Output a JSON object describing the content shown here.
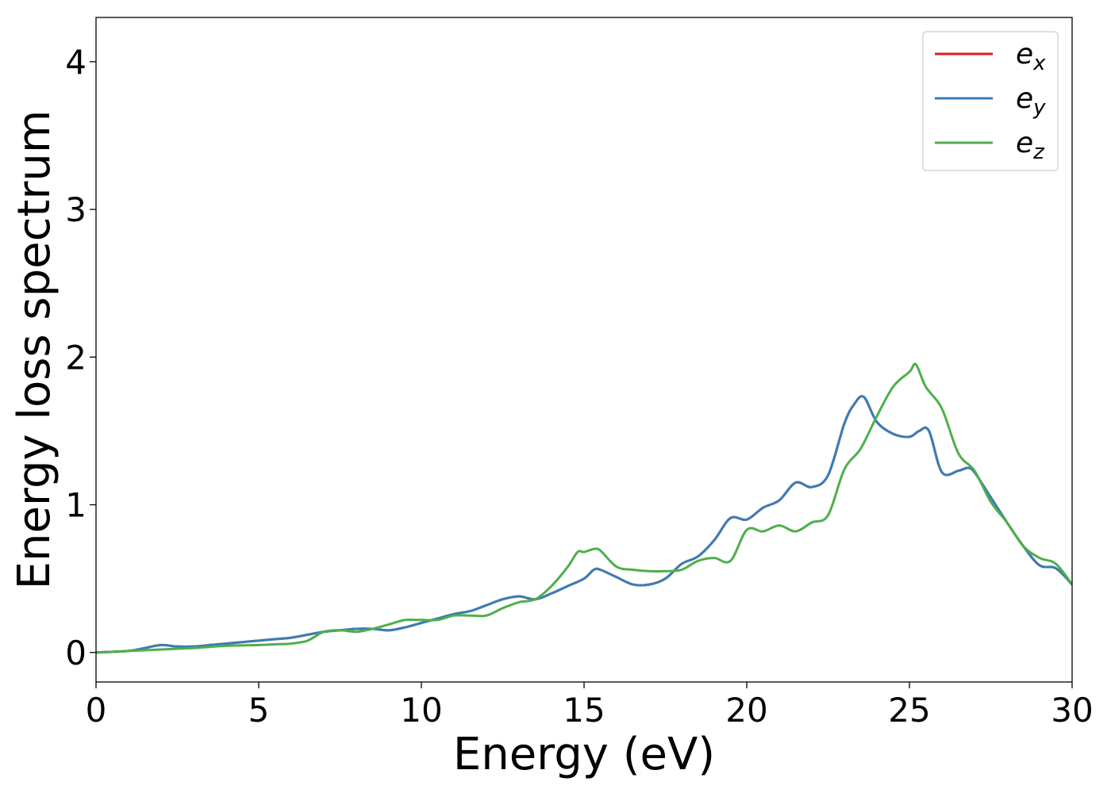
{
  "chart_data": {
    "type": "line",
    "xlabel": "Energy (eV)",
    "ylabel": "Energy loss spectrum",
    "xlim": [
      0,
      30
    ],
    "ylim": [
      -0.2,
      4.3
    ],
    "xticks": [
      "0",
      "5",
      "10",
      "15",
      "20",
      "25",
      "30"
    ],
    "yticks": [
      "0",
      "1",
      "2",
      "3",
      "4"
    ],
    "grid": false,
    "legend": {
      "placement": "top-right",
      "entries": [
        {
          "base": "e",
          "sub": "x",
          "color": "#e41a1c"
        },
        {
          "base": "e",
          "sub": "y",
          "color": "#377eb8"
        },
        {
          "base": "e",
          "sub": "z",
          "color": "#4daf4a"
        }
      ]
    },
    "series": [
      {
        "name": "e_x",
        "color": "#e41a1c",
        "x": [
          0,
          1,
          1.5,
          2,
          2.5,
          3,
          3.5,
          4,
          4.5,
          5,
          5.5,
          6,
          6.5,
          7,
          7.5,
          8,
          8.5,
          9,
          9.5,
          10,
          10.5,
          11,
          11.5,
          12,
          12.5,
          13,
          13.5,
          14,
          14.5,
          15,
          15.3,
          15.5,
          16,
          16.5,
          17,
          17.5,
          18,
          18.5,
          19,
          19.5,
          20,
          20.5,
          21,
          21.5,
          22,
          22.5,
          23,
          23.3,
          23.6,
          24,
          24.5,
          25,
          25.3,
          25.6,
          26,
          26.5,
          26.8,
          27,
          27.5,
          28,
          28.5,
          29,
          29.5,
          30
        ],
        "y": [
          0,
          0.01,
          0.03,
          0.05,
          0.04,
          0.04,
          0.05,
          0.06,
          0.07,
          0.08,
          0.09,
          0.1,
          0.12,
          0.14,
          0.15,
          0.16,
          0.16,
          0.15,
          0.17,
          0.2,
          0.23,
          0.26,
          0.28,
          0.32,
          0.36,
          0.38,
          0.36,
          0.4,
          0.45,
          0.5,
          0.56,
          0.56,
          0.51,
          0.46,
          0.46,
          0.5,
          0.6,
          0.65,
          0.76,
          0.91,
          0.9,
          0.98,
          1.03,
          1.15,
          1.12,
          1.2,
          1.55,
          1.68,
          1.73,
          1.56,
          1.48,
          1.46,
          1.5,
          1.5,
          1.22,
          1.23,
          1.25,
          1.22,
          1.05,
          0.88,
          0.72,
          0.59,
          0.57,
          0.46
        ]
      },
      {
        "name": "e_y",
        "color": "#377eb8",
        "x": [
          0,
          1,
          1.5,
          2,
          2.5,
          3,
          3.5,
          4,
          4.5,
          5,
          5.5,
          6,
          6.5,
          7,
          7.5,
          8,
          8.5,
          9,
          9.5,
          10,
          10.5,
          11,
          11.5,
          12,
          12.5,
          13,
          13.5,
          14,
          14.5,
          15,
          15.3,
          15.5,
          16,
          16.5,
          17,
          17.5,
          18,
          18.5,
          19,
          19.5,
          20,
          20.5,
          21,
          21.5,
          22,
          22.5,
          23,
          23.3,
          23.6,
          24,
          24.5,
          25,
          25.3,
          25.6,
          26,
          26.5,
          26.8,
          27,
          27.5,
          28,
          28.5,
          29,
          29.5,
          30
        ],
        "y": [
          0,
          0.01,
          0.03,
          0.05,
          0.04,
          0.04,
          0.05,
          0.06,
          0.07,
          0.08,
          0.09,
          0.1,
          0.12,
          0.14,
          0.15,
          0.16,
          0.16,
          0.15,
          0.17,
          0.2,
          0.23,
          0.26,
          0.28,
          0.32,
          0.36,
          0.38,
          0.36,
          0.4,
          0.45,
          0.5,
          0.56,
          0.56,
          0.51,
          0.46,
          0.46,
          0.5,
          0.6,
          0.65,
          0.76,
          0.91,
          0.9,
          0.98,
          1.03,
          1.15,
          1.12,
          1.2,
          1.55,
          1.68,
          1.73,
          1.56,
          1.48,
          1.46,
          1.5,
          1.5,
          1.22,
          1.23,
          1.25,
          1.22,
          1.05,
          0.88,
          0.72,
          0.59,
          0.57,
          0.46
        ]
      },
      {
        "name": "e_z",
        "color": "#4daf4a",
        "x": [
          0,
          1,
          2,
          3,
          4,
          5,
          5.5,
          6,
          6.5,
          7,
          7.5,
          8,
          8.5,
          9,
          9.5,
          10,
          10.5,
          11,
          11.5,
          12,
          12.5,
          13,
          13.5,
          14,
          14.5,
          14.8,
          15,
          15.3,
          15.5,
          16,
          16.5,
          17,
          17.5,
          18,
          18.5,
          19,
          19.5,
          20,
          20.5,
          21,
          21.5,
          22,
          22.5,
          23,
          23.5,
          24,
          24.5,
          25,
          25.2,
          25.5,
          26,
          26.5,
          27,
          27.5,
          28,
          28.5,
          29,
          29.5,
          30
        ],
        "y": [
          0,
          0.01,
          0.02,
          0.03,
          0.045,
          0.05,
          0.055,
          0.06,
          0.08,
          0.14,
          0.15,
          0.14,
          0.16,
          0.19,
          0.22,
          0.22,
          0.22,
          0.25,
          0.25,
          0.25,
          0.3,
          0.34,
          0.36,
          0.45,
          0.58,
          0.68,
          0.68,
          0.7,
          0.69,
          0.58,
          0.56,
          0.55,
          0.55,
          0.56,
          0.62,
          0.64,
          0.62,
          0.83,
          0.82,
          0.86,
          0.82,
          0.88,
          0.93,
          1.24,
          1.38,
          1.6,
          1.8,
          1.9,
          1.95,
          1.8,
          1.65,
          1.35,
          1.23,
          1.02,
          0.88,
          0.72,
          0.64,
          0.6,
          0.46
        ]
      }
    ]
  }
}
